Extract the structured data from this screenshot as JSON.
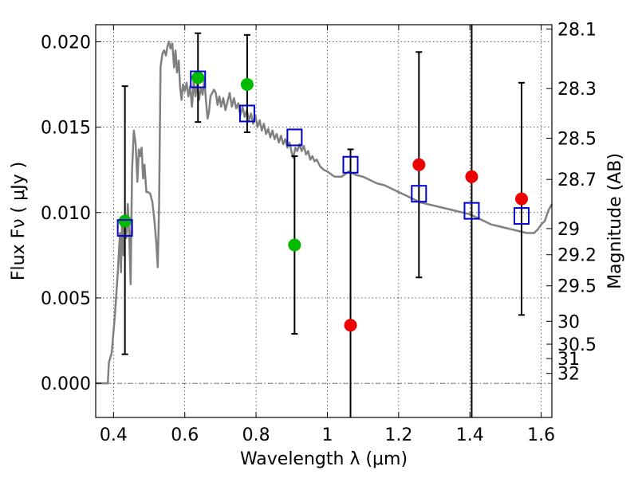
{
  "chart_data": {
    "type": "scatter",
    "xlabel": "Wavelength  λ (μm)",
    "ylabel": "Flux  Fν  ( μJy )",
    "ylabel_right": "Magnitude (AB)",
    "xlim": [
      0.35,
      1.63
    ],
    "ylim": [
      -0.002,
      0.021
    ],
    "grid": true,
    "x_ticks": [
      0.4,
      0.6,
      0.8,
      1.0,
      1.2,
      1.4,
      1.6
    ],
    "x_tick_labels": [
      "0.4",
      "0.6",
      "0.8",
      "1",
      "1.2",
      "1.4",
      "1.6"
    ],
    "y_ticks": [
      0.0,
      0.005,
      0.01,
      0.015,
      0.02
    ],
    "y_tick_labels": [
      "0.000",
      "0.005",
      "0.010",
      "0.015",
      "0.020"
    ],
    "mag_ticks": [
      {
        "label": "28.1",
        "flux": 0.02075
      },
      {
        "label": "28.3",
        "flux": 0.01726
      },
      {
        "label": "28.5",
        "flux": 0.01435
      },
      {
        "label": "28.7",
        "flux": 0.01194
      },
      {
        "label": "29",
        "flux": 0.00906
      },
      {
        "label": "29.2",
        "flux": 0.00753
      },
      {
        "label": "29.5",
        "flux": 0.00571
      },
      {
        "label": "30",
        "flux": 0.00363
      },
      {
        "label": "30.5",
        "flux": 0.00229
      },
      {
        "label": "31",
        "flux": 0.00145
      },
      {
        "label": "32",
        "flux": 0.00058
      }
    ],
    "series": [
      {
        "kind": "line",
        "color": "#808080",
        "points": [
          [
            0.35,
            0.0
          ],
          [
            0.384,
            0.0
          ],
          [
            0.387,
            0.0012
          ],
          [
            0.395,
            0.0018
          ],
          [
            0.404,
            0.004
          ],
          [
            0.412,
            0.0065
          ],
          [
            0.418,
            0.0088
          ],
          [
            0.421,
            0.0065
          ],
          [
            0.424,
            0.0097
          ],
          [
            0.428,
            0.0075
          ],
          [
            0.432,
            0.0098
          ],
          [
            0.436,
            0.0085
          ],
          [
            0.44,
            0.0105
          ],
          [
            0.444,
            0.0088
          ],
          [
            0.448,
            0.0058
          ],
          [
            0.452,
            0.0125
          ],
          [
            0.457,
            0.0148
          ],
          [
            0.462,
            0.014
          ],
          [
            0.467,
            0.0118
          ],
          [
            0.471,
            0.0137
          ],
          [
            0.475,
            0.0133
          ],
          [
            0.479,
            0.0138
          ],
          [
            0.483,
            0.012
          ],
          [
            0.487,
            0.0128
          ],
          [
            0.492,
            0.0112
          ],
          [
            0.497,
            0.0112
          ],
          [
            0.503,
            0.0111
          ],
          [
            0.509,
            0.0106
          ],
          [
            0.515,
            0.0095
          ],
          [
            0.52,
            0.0082
          ],
          [
            0.524,
            0.0068
          ],
          [
            0.528,
            0.0105
          ],
          [
            0.532,
            0.0185
          ],
          [
            0.537,
            0.0193
          ],
          [
            0.542,
            0.0195
          ],
          [
            0.547,
            0.0192
          ],
          [
            0.552,
            0.0198
          ],
          [
            0.556,
            0.02
          ],
          [
            0.56,
            0.0196
          ],
          [
            0.565,
            0.0199
          ],
          [
            0.57,
            0.0185
          ],
          [
            0.574,
            0.0195
          ],
          [
            0.578,
            0.0182
          ],
          [
            0.583,
            0.0189
          ],
          [
            0.587,
            0.0173
          ],
          [
            0.591,
            0.0166
          ],
          [
            0.595,
            0.0175
          ],
          [
            0.6,
            0.0171
          ],
          [
            0.605,
            0.0176
          ],
          [
            0.61,
            0.0168
          ],
          [
            0.615,
            0.0174
          ],
          [
            0.62,
            0.0162
          ],
          [
            0.625,
            0.0177
          ],
          [
            0.63,
            0.0168
          ],
          [
            0.635,
            0.0175
          ],
          [
            0.64,
            0.0166
          ],
          [
            0.645,
            0.0173
          ],
          [
            0.65,
            0.0169
          ],
          [
            0.655,
            0.0178
          ],
          [
            0.66,
            0.0164
          ],
          [
            0.664,
            0.0155
          ],
          [
            0.668,
            0.0159
          ],
          [
            0.672,
            0.0168
          ],
          [
            0.677,
            0.017
          ],
          [
            0.682,
            0.0172
          ],
          [
            0.687,
            0.017
          ],
          [
            0.692,
            0.0163
          ],
          [
            0.697,
            0.0168
          ],
          [
            0.702,
            0.0162
          ],
          [
            0.708,
            0.0167
          ],
          [
            0.714,
            0.016
          ],
          [
            0.72,
            0.0165
          ],
          [
            0.726,
            0.017
          ],
          [
            0.732,
            0.0162
          ],
          [
            0.738,
            0.0167
          ],
          [
            0.744,
            0.0161
          ],
          [
            0.75,
            0.0164
          ],
          [
            0.756,
            0.0157
          ],
          [
            0.762,
            0.0162
          ],
          [
            0.768,
            0.0156
          ],
          [
            0.774,
            0.016
          ],
          [
            0.78,
            0.0154
          ],
          [
            0.786,
            0.0158
          ],
          [
            0.792,
            0.0152
          ],
          [
            0.798,
            0.0157
          ],
          [
            0.804,
            0.015
          ],
          [
            0.81,
            0.0154
          ],
          [
            0.816,
            0.0148
          ],
          [
            0.822,
            0.0152
          ],
          [
            0.828,
            0.0146
          ],
          [
            0.834,
            0.0149
          ],
          [
            0.84,
            0.0144
          ],
          [
            0.846,
            0.0148
          ],
          [
            0.852,
            0.0143
          ],
          [
            0.858,
            0.0146
          ],
          [
            0.864,
            0.0141
          ],
          [
            0.87,
            0.0145
          ],
          [
            0.876,
            0.014
          ],
          [
            0.882,
            0.0143
          ],
          [
            0.888,
            0.0138
          ],
          [
            0.894,
            0.0141
          ],
          [
            0.9,
            0.0135
          ],
          [
            0.905,
            0.0132
          ],
          [
            0.91,
            0.0138
          ],
          [
            0.916,
            0.0136
          ],
          [
            0.922,
            0.014
          ],
          [
            0.928,
            0.0136
          ],
          [
            0.934,
            0.0139
          ],
          [
            0.94,
            0.0134
          ],
          [
            0.946,
            0.0136
          ],
          [
            0.952,
            0.0131
          ],
          [
            0.958,
            0.0133
          ],
          [
            0.964,
            0.013
          ],
          [
            0.97,
            0.0131
          ],
          [
            0.98,
            0.0127
          ],
          [
            0.99,
            0.0125
          ],
          [
            1.0,
            0.0124
          ],
          [
            1.02,
            0.0121
          ],
          [
            1.04,
            0.0121
          ],
          [
            1.06,
            0.0124
          ],
          [
            1.08,
            0.0122
          ],
          [
            1.1,
            0.0121
          ],
          [
            1.12,
            0.0119
          ],
          [
            1.14,
            0.0117
          ],
          [
            1.16,
            0.0116
          ],
          [
            1.18,
            0.0114
          ],
          [
            1.2,
            0.0112
          ],
          [
            1.22,
            0.011
          ],
          [
            1.24,
            0.0108
          ],
          [
            1.26,
            0.0106
          ],
          [
            1.28,
            0.0105
          ],
          [
            1.3,
            0.0104
          ],
          [
            1.32,
            0.0103
          ],
          [
            1.34,
            0.0102
          ],
          [
            1.36,
            0.0101
          ],
          [
            1.38,
            0.01
          ],
          [
            1.4,
            0.0099
          ],
          [
            1.42,
            0.0097
          ],
          [
            1.44,
            0.0095
          ],
          [
            1.46,
            0.0093
          ],
          [
            1.48,
            0.0092
          ],
          [
            1.5,
            0.0091
          ],
          [
            1.52,
            0.009
          ],
          [
            1.54,
            0.0089
          ],
          [
            1.56,
            0.0088
          ],
          [
            1.58,
            0.0088
          ],
          [
            1.59,
            0.009
          ],
          [
            1.6,
            0.0093
          ],
          [
            1.61,
            0.0095
          ],
          [
            1.62,
            0.0101
          ],
          [
            1.63,
            0.0105
          ]
        ]
      },
      {
        "kind": "errorbar",
        "color": "#000000",
        "points": [
          {
            "x": 0.432,
            "low": 0.0017,
            "high": 0.0174
          },
          {
            "x": 0.637,
            "low": 0.0153,
            "high": 0.0205
          },
          {
            "x": 0.775,
            "low": 0.0147,
            "high": 0.0204
          },
          {
            "x": 0.908,
            "low": 0.0029,
            "high": 0.0133
          },
          {
            "x": 1.065,
            "low": -0.002,
            "high": 0.0137
          },
          {
            "x": 1.257,
            "low": 0.0062,
            "high": 0.0194
          },
          {
            "x": 1.405,
            "low": -0.002,
            "high": 0.0212
          },
          {
            "x": 1.545,
            "low": 0.004,
            "high": 0.0176
          }
        ]
      },
      {
        "kind": "marker",
        "marker": "circle",
        "color": "#00bb00",
        "x": [
          0.432,
          0.637,
          0.775,
          0.908
        ],
        "y": [
          0.0095,
          0.0179,
          0.0175,
          0.0081
        ]
      },
      {
        "kind": "marker",
        "marker": "circle",
        "color": "#ee0000",
        "x": [
          1.065,
          1.257,
          1.405,
          1.545
        ],
        "y": [
          0.0034,
          0.0128,
          0.0121,
          0.0108
        ]
      },
      {
        "kind": "marker",
        "marker": "open-square",
        "color": "#0000cc",
        "x": [
          0.432,
          0.637,
          0.775,
          0.908,
          1.065,
          1.257,
          1.405,
          1.545
        ],
        "y": [
          0.0091,
          0.0178,
          0.0158,
          0.0144,
          0.0128,
          0.0111,
          0.0101,
          0.0098
        ]
      }
    ]
  }
}
